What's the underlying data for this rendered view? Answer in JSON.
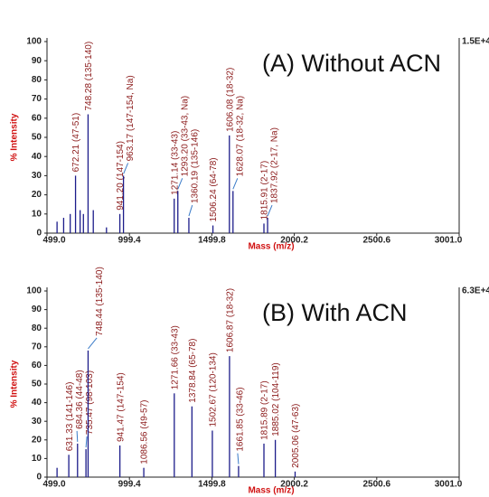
{
  "chart_data": [
    {
      "type": "spectrum",
      "title": "(A) Without ACN",
      "scale_label": "1.5E+4",
      "x_label": "Mass (m/z)",
      "y_label": "% Intensity",
      "color": "#1c1c8a",
      "label_color": "#8b1a1a",
      "xlim": [
        499.0,
        3001.0
      ],
      "xticks": [
        {
          "value": 499.0,
          "label": "499.0"
        },
        999.4,
        1499.8,
        2000.2,
        2500.6,
        {
          "value": 3001.0,
          "label": "3001.0"
        }
      ],
      "ylim": [
        0,
        100
      ],
      "yticks": [
        0,
        10,
        20,
        30,
        40,
        50,
        60,
        70,
        80,
        90,
        100
      ],
      "x": [
        560,
        600,
        640,
        672.21,
        700,
        720,
        748.28,
        780,
        860,
        941.2,
        963.17,
        1271.14,
        1293.2,
        1360.19,
        1506.24,
        1606.08,
        1628.07,
        1815.91,
        1837.92
      ],
      "values": [
        6,
        8,
        10,
        30,
        12,
        10,
        62,
        12,
        3,
        10,
        30,
        18,
        22,
        8,
        4,
        51,
        22,
        5,
        8
      ],
      "peak_labels": [
        null,
        null,
        null,
        "672.21 (47-51)",
        null,
        null,
        "748.28 (135-140)",
        null,
        null,
        "941.20 (147-154)",
        "963.17 (147-154, Na)",
        "1271.14 (33-43)",
        "1293.20 (33-43, Na)",
        "1360.19 (135-146)",
        "1506.24 (64-78)",
        "1606.08 (18-32)",
        "1628.07 (18-32, Na)",
        "1815.91 (2-17)",
        "1837.92 (2-17, Na)"
      ]
    },
    {
      "type": "spectrum",
      "title": "(B) With ACN",
      "scale_label": "6.3E+4",
      "x_label": "Mass (m/z)",
      "y_label": "% Intensity",
      "color": "#1c1c8a",
      "label_color": "#8b1a1a",
      "xlim": [
        499.0,
        3001.0
      ],
      "xticks": [
        {
          "value": 499.0,
          "label": "499.0"
        },
        999.4,
        1499.8,
        2000.2,
        2500.6,
        {
          "value": 3001.0,
          "label": "3001.0"
        }
      ],
      "ylim": [
        0,
        100
      ],
      "yticks": [
        0,
        10,
        20,
        30,
        40,
        50,
        60,
        70,
        80,
        90,
        100
      ],
      "x": [
        560,
        631.33,
        684.36,
        735.47,
        748.44,
        941.47,
        1086.56,
        1271.66,
        1378.84,
        1502.67,
        1606.87,
        1661.85,
        1815.89,
        1885.02,
        2005.06
      ],
      "values": [
        5,
        12,
        18,
        15,
        68,
        17,
        5,
        45,
        38,
        25,
        65,
        6,
        18,
        20,
        3
      ],
      "peak_labels": [
        null,
        "631.33 (141-146)",
        "684.36 (44-48)",
        "735.47 (98-103)",
        "748.44 (135-140)",
        "941.47 (147-154)",
        "1086.56 (49-57)",
        "1271.66 (33-43)",
        "1378.84 (65-78)",
        "1502.67 (120-134)",
        "1606.87 (18-32)",
        "1661.85 (33-46)",
        "1815.89 (2-17)",
        "1885.02 (104-119)",
        "2005.06 (47-63)"
      ]
    }
  ]
}
